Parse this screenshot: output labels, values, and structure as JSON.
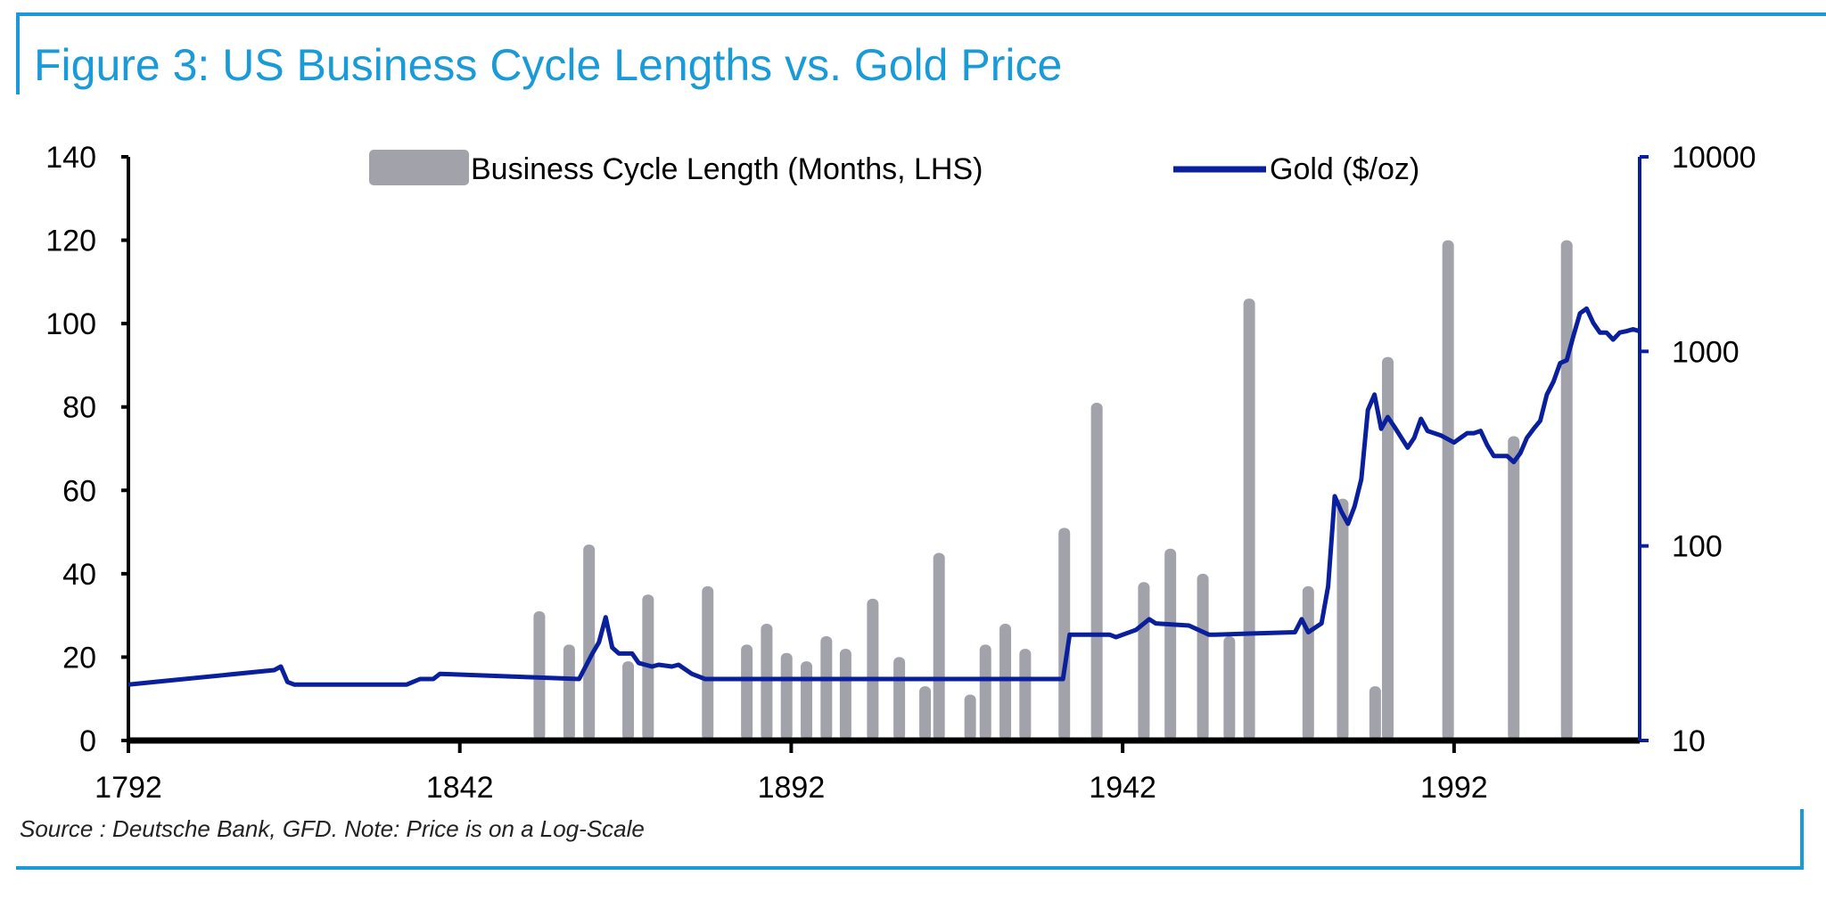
{
  "title": "Figure 3: US Business Cycle Lengths vs. Gold Price",
  "source": "Source : Deutsche Bank, GFD. Note: Price is on a Log-Scale",
  "colors": {
    "title": "#1a9bd7",
    "bars": "#a2a2ab",
    "gold": "#0a1f9c",
    "axis": "#000000"
  },
  "chart_data": {
    "type": "bar+line",
    "title": "Figure 3: US Business Cycle Lengths vs. Gold Price",
    "xlim": [
      1792,
      2020
    ],
    "x_ticks": [
      "1792",
      "1842",
      "1892",
      "1942",
      "1992"
    ],
    "y_left": {
      "label": "Business Cycle Length (Months, LHS)",
      "lim": [
        0,
        140
      ],
      "ticks": [
        "0",
        "20",
        "40",
        "60",
        "80",
        "100",
        "120",
        "140"
      ]
    },
    "y_right": {
      "label": "Gold ($/oz)",
      "scale": "log",
      "lim": [
        10,
        10000
      ],
      "ticks": [
        "10",
        "100",
        "1000",
        "10000"
      ]
    },
    "legend": [
      "Business Cycle Length (Months, LHS)",
      "Gold ($/oz)"
    ],
    "legend_position": "top-center",
    "bars": {
      "name": "Business Cycle Length (Months, LHS)",
      "x": [
        1854,
        1858.5,
        1861.5,
        1867.4,
        1870.4,
        1879.4,
        1885.3,
        1888.3,
        1891.3,
        1894.3,
        1897.3,
        1900.2,
        1904.3,
        1908.3,
        1912.2,
        1914.3,
        1919,
        1921.3,
        1924.3,
        1927.3,
        1933.2,
        1938.1,
        1945.2,
        1949.2,
        1954.1,
        1958.1,
        1961.1,
        1970,
        1975.2,
        1980.1,
        1982,
        1991.1,
        2001,
        2009
      ],
      "values": [
        31,
        23,
        47,
        19,
        35,
        37,
        23,
        28,
        21,
        19,
        25,
        22,
        34,
        20,
        13,
        45,
        11,
        23,
        28,
        22,
        51,
        81,
        38,
        46,
        40,
        25,
        106,
        37,
        58,
        13,
        92,
        120,
        73,
        120
      ]
    },
    "line": {
      "name": "Gold ($/oz)",
      "x": [
        1792,
        1814,
        1815,
        1816,
        1817,
        1834,
        1836,
        1838,
        1839,
        1860,
        1862,
        1863,
        1864,
        1865,
        1866,
        1868,
        1869,
        1871,
        1872,
        1874,
        1875,
        1877,
        1879,
        1933,
        1934,
        1940,
        1941,
        1944,
        1946,
        1947,
        1952,
        1955,
        1956,
        1968,
        1969,
        1970,
        1972,
        1973,
        1974,
        1975,
        1976,
        1977,
        1978,
        1979,
        1980,
        1981,
        1982,
        1983,
        1985,
        1986,
        1987,
        1988,
        1990,
        1992,
        1993,
        1994,
        1995,
        1996,
        1997,
        1998,
        1999,
        2000,
        2001,
        2002,
        2003,
        2004,
        2005,
        2006,
        2007,
        2008,
        2009,
        2010,
        2011,
        2012,
        2013,
        2014,
        2015,
        2016,
        2017,
        2018,
        2019,
        2020
      ],
      "values": [
        19.4,
        23,
        24,
        20,
        19.4,
        19.4,
        20.7,
        20.7,
        22,
        20.7,
        28,
        32,
        43,
        30,
        28,
        28,
        25,
        24,
        24.5,
        24,
        24.5,
        22,
        20.7,
        20.7,
        35,
        35,
        34,
        37,
        42,
        40,
        39,
        35,
        35,
        36,
        42,
        36,
        40,
        62,
        180,
        150,
        130,
        160,
        220,
        500,
        600,
        400,
        460,
        410,
        320,
        360,
        450,
        390,
        370,
        340,
        360,
        380,
        380,
        390,
        330,
        290,
        290,
        290,
        270,
        300,
        360,
        400,
        440,
        600,
        700,
        870,
        900,
        1200,
        1570,
        1660,
        1400,
        1250,
        1250,
        1150,
        1250,
        1270,
        1300,
        1270
      ]
    }
  }
}
